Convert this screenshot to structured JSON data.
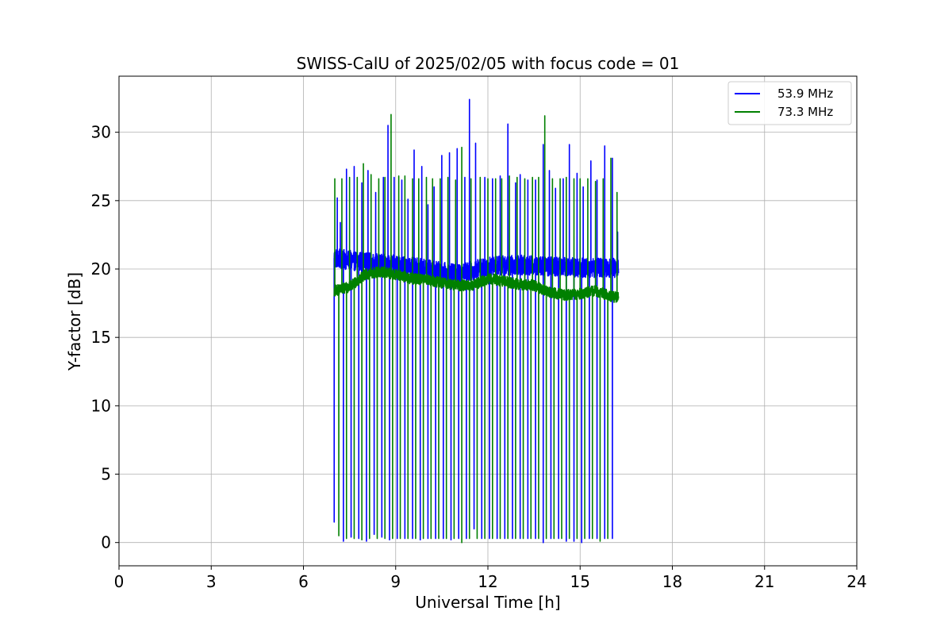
{
  "chart_data": {
    "type": "line",
    "title": "SWISS-CalU of 2025/02/05 with focus code = 01",
    "xlabel": "Universal Time [h]",
    "ylabel": "Y-factor [dB]",
    "xlim": [
      0,
      24
    ],
    "ylim": [
      -1.7,
      34.1
    ],
    "xticks": [
      0,
      3,
      6,
      9,
      12,
      15,
      18,
      21,
      24
    ],
    "yticks": [
      0,
      5,
      10,
      15,
      20,
      25,
      30
    ],
    "grid": true,
    "legend_position": "top-right",
    "series": [
      {
        "name": "53.9 MHz",
        "color": "#0000ff",
        "start": 7.0,
        "end": 16.25,
        "baseline_points": [
          [
            7.0,
            20.8
          ],
          [
            8.0,
            20.5
          ],
          [
            9.0,
            20.3
          ],
          [
            10.0,
            20.0
          ],
          [
            11.0,
            19.6
          ],
          [
            12.0,
            20.2
          ],
          [
            13.0,
            20.3
          ],
          [
            14.0,
            20.2
          ],
          [
            15.0,
            20.1
          ],
          [
            16.25,
            20.1
          ]
        ],
        "baseline_noise": 0.9,
        "dips": [
          [
            7.0,
            1.5
          ],
          [
            7.3,
            0.1
          ],
          [
            7.55,
            0.4
          ],
          [
            7.8,
            0.3
          ],
          [
            8.05,
            0.1
          ],
          [
            8.3,
            0.6
          ],
          [
            8.55,
            0.4
          ],
          [
            8.8,
            0.2
          ],
          [
            9.05,
            0.3
          ],
          [
            9.3,
            0.3
          ],
          [
            9.55,
            0.3
          ],
          [
            9.8,
            0.2
          ],
          [
            10.05,
            0.3
          ],
          [
            10.3,
            0.3
          ],
          [
            10.55,
            0.3
          ],
          [
            10.8,
            0.2
          ],
          [
            11.05,
            0.3
          ],
          [
            11.3,
            0.3
          ],
          [
            11.55,
            1.0
          ],
          [
            11.8,
            0.3
          ],
          [
            12.05,
            0.3
          ],
          [
            12.3,
            0.3
          ],
          [
            12.55,
            0.3
          ],
          [
            12.8,
            0.3
          ],
          [
            13.05,
            0.3
          ],
          [
            13.3,
            0.3
          ],
          [
            13.55,
            0.3
          ],
          [
            13.8,
            0.0
          ],
          [
            14.05,
            0.3
          ],
          [
            14.3,
            0.3
          ],
          [
            14.55,
            0.1
          ],
          [
            14.8,
            0.1
          ],
          [
            15.05,
            0.0
          ],
          [
            15.3,
            0.3
          ],
          [
            15.55,
            0.3
          ],
          [
            15.8,
            0.3
          ],
          [
            16.05,
            0.3
          ]
        ],
        "peaks": [
          [
            7.1,
            25.2
          ],
          [
            7.2,
            23.4
          ],
          [
            7.4,
            27.3
          ],
          [
            7.65,
            27.5
          ],
          [
            7.9,
            26.3
          ],
          [
            8.1,
            27.2
          ],
          [
            8.35,
            25.6
          ],
          [
            8.6,
            26.7
          ],
          [
            8.75,
            30.5
          ],
          [
            8.95,
            26.7
          ],
          [
            9.2,
            26.5
          ],
          [
            9.4,
            25.1
          ],
          [
            9.6,
            28.7
          ],
          [
            9.85,
            27.5
          ],
          [
            10.05,
            24.7
          ],
          [
            10.25,
            26.0
          ],
          [
            10.5,
            28.3
          ],
          [
            10.75,
            28.5
          ],
          [
            11.0,
            28.8
          ],
          [
            11.25,
            26.7
          ],
          [
            11.4,
            32.4
          ],
          [
            11.6,
            29.2
          ],
          [
            11.9,
            26.7
          ],
          [
            12.15,
            26.6
          ],
          [
            12.4,
            26.8
          ],
          [
            12.65,
            30.6
          ],
          [
            12.9,
            26.3
          ],
          [
            13.05,
            26.9
          ],
          [
            13.3,
            26.5
          ],
          [
            13.55,
            26.5
          ],
          [
            13.8,
            29.1
          ],
          [
            14.0,
            27.2
          ],
          [
            14.2,
            25.9
          ],
          [
            14.45,
            26.6
          ],
          [
            14.65,
            29.1
          ],
          [
            14.9,
            27.0
          ],
          [
            15.1,
            26.0
          ],
          [
            15.35,
            27.9
          ],
          [
            15.55,
            26.5
          ],
          [
            15.8,
            29.0
          ],
          [
            16.05,
            28.1
          ],
          [
            16.22,
            22.7
          ]
        ]
      },
      {
        "name": "73.3 MHz",
        "color": "#008000",
        "start": 7.0,
        "end": 16.25,
        "baseline_points": [
          [
            7.0,
            18.4
          ],
          [
            7.5,
            18.7
          ],
          [
            8.0,
            19.6
          ],
          [
            8.5,
            19.8
          ],
          [
            9.0,
            19.6
          ],
          [
            9.5,
            19.3
          ],
          [
            10.0,
            19.2
          ],
          [
            10.5,
            19.0
          ],
          [
            11.0,
            18.8
          ],
          [
            11.5,
            18.8
          ],
          [
            12.0,
            19.3
          ],
          [
            12.5,
            19.1
          ],
          [
            13.0,
            18.9
          ],
          [
            13.5,
            18.8
          ],
          [
            14.0,
            18.3
          ],
          [
            14.5,
            18.1
          ],
          [
            15.0,
            18.2
          ],
          [
            15.5,
            18.4
          ],
          [
            16.0,
            18.0
          ],
          [
            16.25,
            17.9
          ]
        ],
        "baseline_noise": 0.5,
        "dips": [
          [
            7.15,
            0.5
          ],
          [
            7.4,
            0.3
          ],
          [
            7.65,
            0.3
          ],
          [
            7.9,
            0.2
          ],
          [
            8.15,
            0.3
          ],
          [
            8.4,
            0.3
          ],
          [
            8.65,
            0.3
          ],
          [
            8.9,
            0.3
          ],
          [
            9.15,
            0.3
          ],
          [
            9.4,
            0.3
          ],
          [
            9.65,
            0.3
          ],
          [
            9.9,
            0.3
          ],
          [
            10.15,
            0.3
          ],
          [
            10.4,
            0.3
          ],
          [
            10.65,
            0.3
          ],
          [
            10.9,
            0.3
          ],
          [
            11.15,
            0.0
          ],
          [
            11.4,
            0.3
          ],
          [
            11.65,
            0.3
          ],
          [
            11.9,
            0.3
          ],
          [
            12.15,
            0.3
          ],
          [
            12.4,
            0.3
          ],
          [
            12.65,
            0.3
          ],
          [
            12.9,
            0.3
          ],
          [
            13.15,
            0.3
          ],
          [
            13.4,
            0.3
          ],
          [
            13.65,
            0.3
          ],
          [
            13.9,
            0.3
          ],
          [
            14.15,
            0.3
          ],
          [
            14.4,
            0.3
          ],
          [
            14.65,
            0.3
          ],
          [
            14.9,
            0.3
          ],
          [
            15.15,
            0.3
          ],
          [
            15.4,
            0.3
          ],
          [
            15.65,
            0.1
          ],
          [
            15.9,
            0.3
          ]
        ],
        "peaks": [
          [
            7.02,
            26.6
          ],
          [
            7.25,
            26.6
          ],
          [
            7.5,
            26.7
          ],
          [
            7.75,
            26.7
          ],
          [
            7.95,
            27.7
          ],
          [
            8.2,
            26.9
          ],
          [
            8.45,
            26.6
          ],
          [
            8.65,
            26.7
          ],
          [
            8.85,
            31.3
          ],
          [
            9.1,
            26.8
          ],
          [
            9.3,
            26.8
          ],
          [
            9.55,
            26.6
          ],
          [
            9.75,
            26.6
          ],
          [
            10.0,
            26.7
          ],
          [
            10.2,
            26.6
          ],
          [
            10.45,
            26.6
          ],
          [
            10.7,
            26.7
          ],
          [
            10.95,
            26.5
          ],
          [
            11.15,
            28.9
          ],
          [
            11.45,
            26.6
          ],
          [
            11.75,
            26.7
          ],
          [
            12.0,
            26.6
          ],
          [
            12.25,
            26.6
          ],
          [
            12.45,
            26.6
          ],
          [
            12.7,
            26.8
          ],
          [
            12.95,
            26.7
          ],
          [
            13.2,
            26.6
          ],
          [
            13.45,
            26.7
          ],
          [
            13.65,
            26.7
          ],
          [
            13.85,
            31.2
          ],
          [
            14.1,
            26.6
          ],
          [
            14.35,
            26.6
          ],
          [
            14.55,
            26.7
          ],
          [
            14.8,
            26.6
          ],
          [
            15.0,
            26.6
          ],
          [
            15.25,
            26.6
          ],
          [
            15.5,
            26.4
          ],
          [
            15.75,
            26.6
          ],
          [
            16.0,
            28.1
          ],
          [
            16.2,
            25.6
          ]
        ]
      }
    ]
  }
}
